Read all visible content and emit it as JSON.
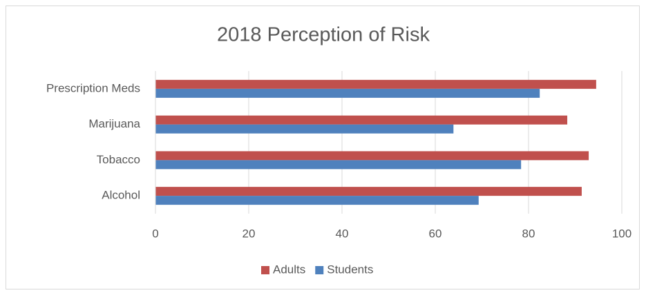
{
  "chart_data": {
    "type": "hbar",
    "title": "2018 Perception of Risk",
    "categories": [
      "Alcohol",
      "Tobacco",
      "Marijuana",
      "Prescription Meds"
    ],
    "series": [
      {
        "name": "Adults",
        "color": "#c0504d",
        "values": [
          91.4,
          92.9,
          88.3,
          94.5
        ]
      },
      {
        "name": "Students",
        "color": "#4f81bd",
        "values": [
          69.3,
          78.4,
          63.9,
          82.4
        ]
      }
    ],
    "xlim": [
      0,
      100
    ],
    "xticks": [
      0,
      20,
      40,
      60,
      80,
      100
    ],
    "grid": true,
    "legend": "bottom"
  }
}
